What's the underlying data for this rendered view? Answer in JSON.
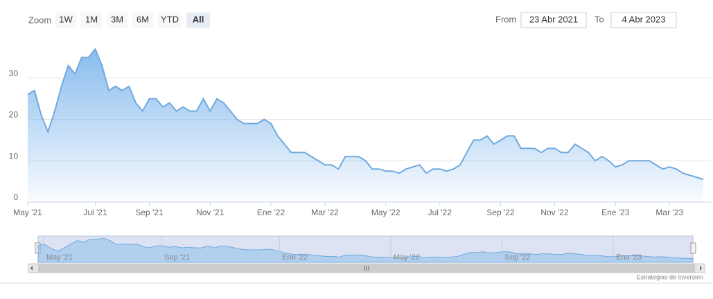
{
  "chart_data": {
    "type": "area",
    "zoom_label": "Zoom",
    "buttons": [
      "1W",
      "1M",
      "3M",
      "6M",
      "YTD",
      "All"
    ],
    "selected_button": "All",
    "from_label": "From",
    "from": "23 Abr 2021",
    "to_label": "To",
    "to": "4 Abr 2023",
    "credit": "Estrategias de Inversión",
    "color": "#6fa9df",
    "grid": true,
    "ylim": [
      0,
      40
    ],
    "yticks": [
      0,
      10,
      20,
      30
    ],
    "categories": [
      "May '21",
      null,
      null,
      null,
      null,
      null,
      null,
      null,
      null,
      null,
      "Jul '21",
      null,
      null,
      null,
      null,
      null,
      null,
      null,
      "Sep '21",
      null,
      null,
      null,
      null,
      null,
      null,
      null,
      null,
      "Nov '21",
      null,
      null,
      null,
      null,
      null,
      null,
      null,
      null,
      "Ene '22",
      null,
      null,
      null,
      null,
      null,
      null,
      null,
      "Mar '22",
      null,
      null,
      null,
      null,
      null,
      null,
      null,
      null,
      "May '22",
      null,
      null,
      null,
      null,
      null,
      null,
      null,
      "Jul '22",
      null,
      null,
      null,
      null,
      null,
      null,
      null,
      null,
      "Sep '22",
      null,
      null,
      null,
      null,
      null,
      null,
      null,
      "Nov '22",
      null,
      null,
      null,
      null,
      null,
      null,
      null,
      null,
      "Ene '23",
      null,
      null,
      null,
      null,
      null,
      null,
      null,
      "Mar '23",
      null,
      null,
      null,
      null,
      null
    ],
    "values": [
      26,
      27,
      21,
      17,
      22,
      28,
      33,
      31,
      35,
      35,
      37,
      33,
      27,
      28,
      27,
      28,
      24,
      22,
      25,
      25,
      23,
      24,
      22,
      23,
      22,
      22,
      25,
      22,
      25,
      24,
      22,
      20,
      19,
      19,
      19,
      20,
      19,
      16,
      14,
      12,
      12,
      12,
      11,
      10,
      9,
      9,
      8,
      11,
      11,
      11,
      10,
      8,
      8,
      7.5,
      7.5,
      7,
      8,
      8.5,
      9,
      7,
      8,
      8,
      7.5,
      8,
      9,
      12,
      15,
      15,
      16,
      14,
      15,
      16,
      16,
      13,
      13,
      13,
      12,
      13,
      13,
      12,
      12,
      14,
      13,
      12,
      10,
      11,
      10,
      8.5,
      9,
      10,
      10,
      10,
      10,
      9,
      8,
      8.5,
      8,
      7,
      6.5,
      6,
      5.5
    ]
  }
}
